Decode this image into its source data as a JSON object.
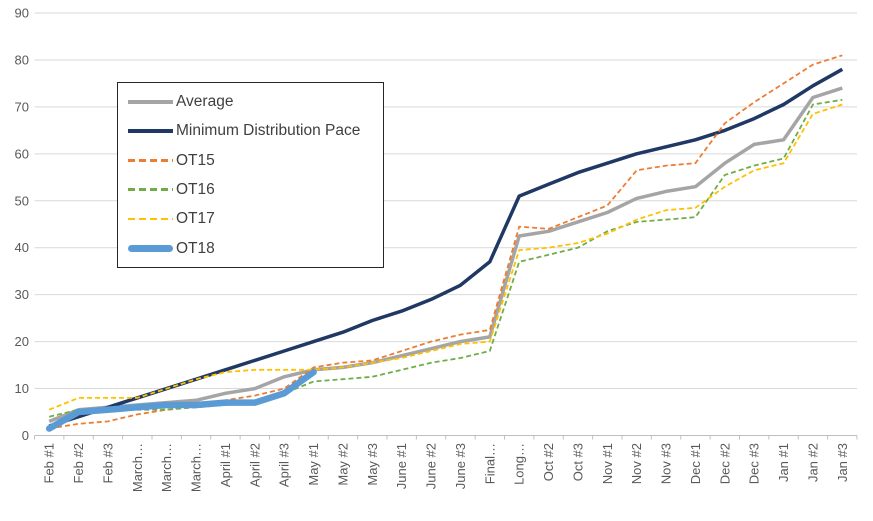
{
  "chart_data": {
    "type": "line",
    "title": "",
    "xlabel": "",
    "ylabel": "",
    "grid": true,
    "legend_position": "overlay-top-left",
    "y_axis": {
      "min": 0,
      "max": 90,
      "step": 10,
      "tick_labels": [
        0,
        10,
        20,
        30,
        40,
        50,
        60,
        70,
        80,
        90
      ]
    },
    "categories": [
      "Feb #1",
      "Feb #2",
      "Feb #3",
      "March…",
      "March…",
      "March…",
      "April #1",
      "April #2",
      "April #3",
      "May #1",
      "May #2",
      "May #3",
      "June #1",
      "June #2",
      "June #3",
      "Final…",
      "Long…",
      "Oct #2",
      "Oct #3",
      "Nov #1",
      "Nov #2",
      "Nov #3",
      "Dec #1",
      "Dec #2",
      "Dec #3",
      "Jan #1",
      "Jan #2",
      "Jan #3"
    ],
    "series": [
      {
        "name": "Average",
        "color": "#a5a5a5",
        "style": "solid",
        "width": 3.5,
        "values": [
          3,
          5.5,
          6,
          6.5,
          7,
          7.5,
          9,
          10,
          12.5,
          14,
          14.5,
          15.5,
          17,
          18.5,
          20,
          21,
          42.5,
          43.5,
          45.5,
          47.5,
          50.5,
          52,
          53,
          58,
          62,
          63,
          72,
          74
        ]
      },
      {
        "name": "Minimum Distribution Pace",
        "color": "#1f3864",
        "style": "solid",
        "width": 3.5,
        "values": [
          2,
          4,
          6,
          8,
          10,
          12,
          14,
          16,
          18,
          20,
          22,
          24.5,
          26.5,
          29,
          32,
          37,
          51,
          53.5,
          56,
          58,
          60,
          61.5,
          63,
          65,
          67.5,
          70.5,
          74.5,
          78
        ]
      },
      {
        "name": "OT15",
        "color": "#ed7d31",
        "style": "dashed",
        "width": 1.8,
        "values": [
          1.5,
          2.5,
          3,
          4.5,
          5.5,
          6.5,
          7.5,
          8.5,
          10,
          14.5,
          15.5,
          16,
          18,
          20,
          21.5,
          22.5,
          44.5,
          44,
          46.5,
          49,
          56.5,
          57.5,
          58,
          66.5,
          71,
          75,
          79,
          81
        ]
      },
      {
        "name": "OT16",
        "color": "#70ad47",
        "style": "dashed",
        "width": 1.8,
        "values": [
          4,
          5.5,
          6,
          5.5,
          5.5,
          6,
          6.5,
          7.5,
          9,
          11.5,
          12,
          12.5,
          14,
          15.5,
          16.5,
          18,
          37,
          38.5,
          40,
          43.5,
          45.5,
          46,
          46.5,
          55.5,
          57.5,
          59,
          70.5,
          71.5
        ]
      },
      {
        "name": "OT17",
        "color": "#ffc000",
        "style": "dashed",
        "width": 1.8,
        "values": [
          5.5,
          8,
          8,
          8,
          10,
          12,
          13.5,
          14,
          14,
          14,
          14.5,
          15.5,
          16.5,
          18,
          19.5,
          20,
          39.5,
          40,
          41,
          43,
          46,
          48,
          48.5,
          53,
          56.5,
          58,
          68.5,
          70.5
        ]
      },
      {
        "name": "OT18",
        "color": "#5b9bd5",
        "style": "solid",
        "width": 6.5,
        "values": [
          1.5,
          5,
          5.5,
          6,
          6.5,
          6.5,
          7,
          7,
          9,
          13.5
        ]
      }
    ]
  },
  "colors": {
    "background": "#ffffff",
    "gridline": "#d9d9d9",
    "axis_line": "#bfbfbf",
    "tick_label": "#595959",
    "legend_text": "#404040",
    "legend_border": "#262626"
  }
}
